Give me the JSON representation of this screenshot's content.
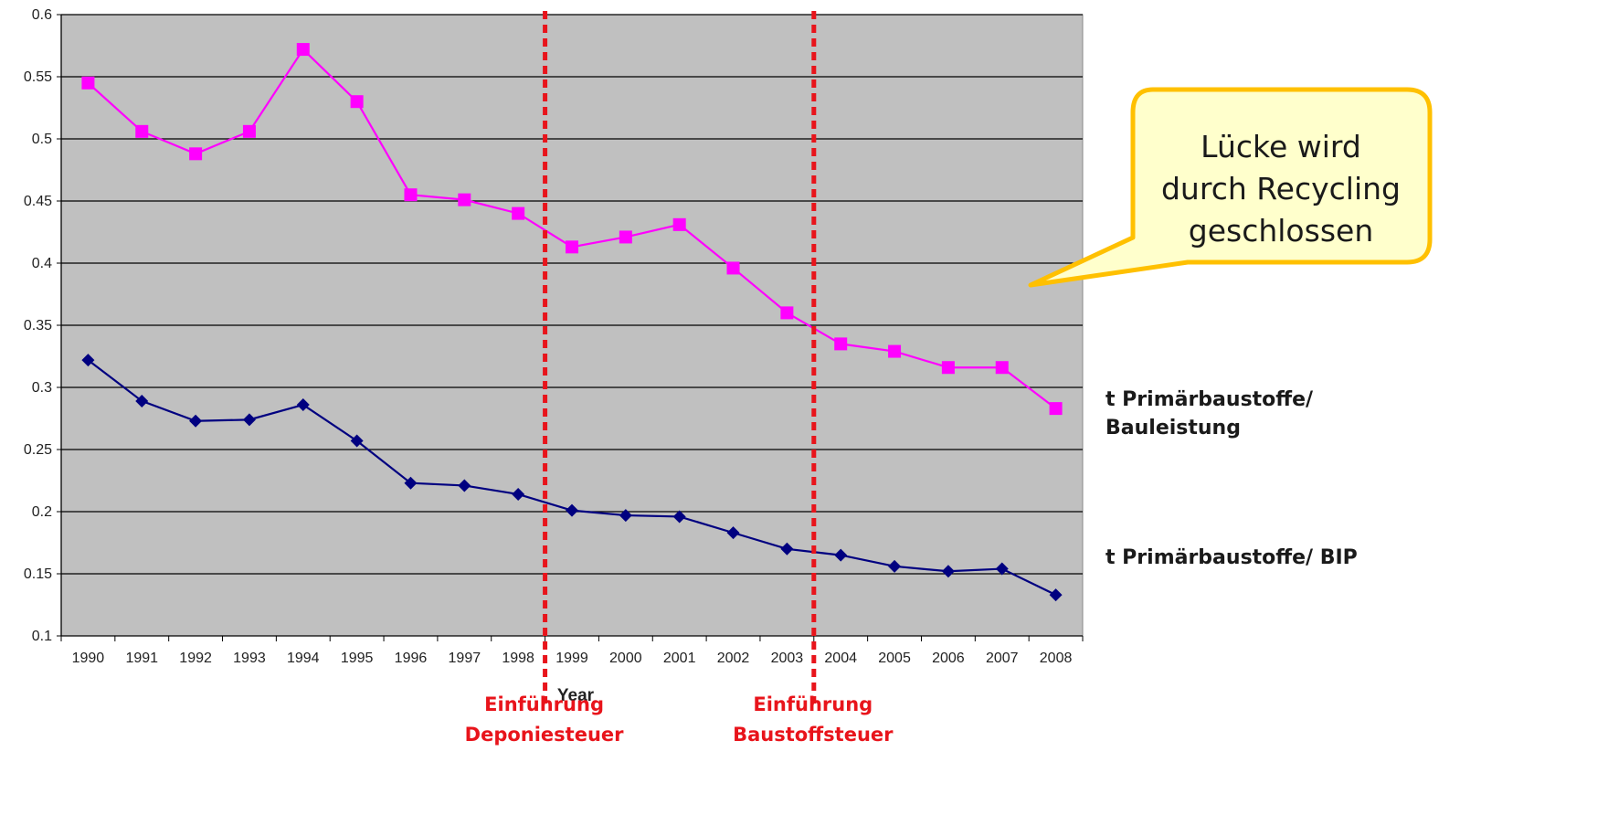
{
  "chart_data": {
    "type": "line",
    "xlabel": "Year",
    "ylabel": "",
    "ylim": [
      0.1,
      0.6
    ],
    "yticks": [
      "0.1",
      "0.15",
      "0.2",
      "0.25",
      "0.3",
      "0.35",
      "0.4",
      "0.45",
      "0.5",
      "0.55",
      "0.6"
    ],
    "grid": true,
    "categories": [
      "1990",
      "1991",
      "1992",
      "1993",
      "1994",
      "1995",
      "1996",
      "1997",
      "1998",
      "1999",
      "2000",
      "2001",
      "2002",
      "2003",
      "2004",
      "2005",
      "2006",
      "2007",
      "2008"
    ],
    "series": [
      {
        "name": "t Primärbaustoffe/ Bauleistung",
        "color": "#ff00ff",
        "marker": "square",
        "values": [
          0.545,
          0.506,
          0.488,
          0.506,
          0.572,
          0.53,
          0.455,
          0.451,
          0.44,
          0.413,
          0.421,
          0.431,
          0.396,
          0.36,
          0.335,
          0.329,
          0.316,
          0.316,
          0.283
        ]
      },
      {
        "name": "t Primärbaustoffe/ BIP",
        "color": "#000080",
        "marker": "diamond",
        "values": [
          0.322,
          0.289,
          0.273,
          0.274,
          0.286,
          0.257,
          0.223,
          0.221,
          0.214,
          0.201,
          0.197,
          0.196,
          0.183,
          0.17,
          0.165,
          0.156,
          0.152,
          0.154,
          0.133
        ]
      }
    ],
    "events": [
      {
        "year": "1998",
        "label_line1": "Einführung",
        "label_line2": "Deponiesteuer",
        "color": "#e8141b"
      },
      {
        "year": "2003",
        "label_line1": "Einführung",
        "label_line2": "Baustoffsteuer",
        "color": "#e8141b"
      }
    ],
    "callout": {
      "lines": [
        "Lücke wird",
        "durch Recycling",
        "geschlossen"
      ],
      "fill": "#ffffcc",
      "border": "#ffc000"
    },
    "side_labels": {
      "upper_line1": "t Primärbaustoffe/",
      "upper_line2": "Bauleistung",
      "lower": "t Primärbaustoffe/ BIP"
    },
    "plot_background": "#c0c0c0"
  }
}
